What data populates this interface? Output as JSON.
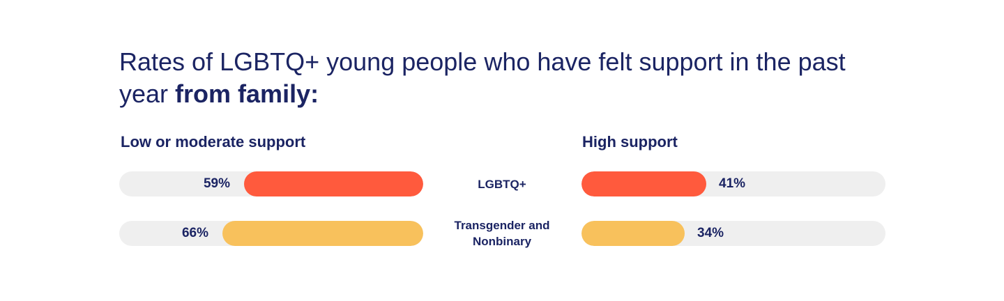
{
  "title": {
    "regular": "Rates of LGBTQ+ young people who have felt support in the past year ",
    "bold": "from family:"
  },
  "chart_data": {
    "type": "bar",
    "title": "Rates of LGBTQ+ young people who have felt support in the past year from family:",
    "categories": [
      "LGBTQ+",
      "Transgender and Nonbinary"
    ],
    "series": [
      {
        "name": "Low or moderate support",
        "values": [
          59,
          66
        ]
      },
      {
        "name": "High support",
        "values": [
          41,
          34
        ]
      }
    ],
    "value_labels": {
      "low": [
        "59%",
        "66%"
      ],
      "high": [
        "41%",
        "34%"
      ]
    },
    "category_colors": [
      "#ff5a3d",
      "#f8c15c"
    ],
    "track_color": "#efefef",
    "ylim": [
      0,
      100
    ],
    "orientation": "horizontal diverging"
  }
}
